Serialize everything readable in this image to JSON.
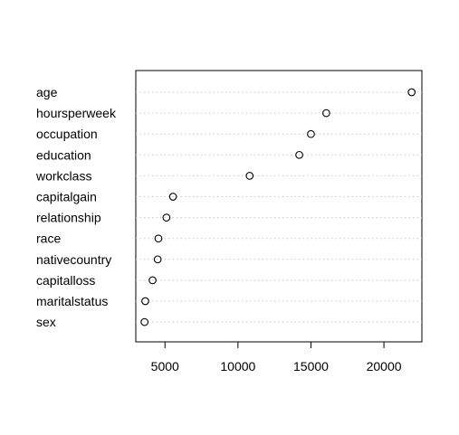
{
  "chart_data": {
    "type": "scatter",
    "title": "",
    "xlabel": "",
    "ylabel": "",
    "categories": [
      "age",
      "hoursperweek",
      "occupation",
      "education",
      "workclass",
      "capitalgain",
      "relationship",
      "race",
      "nativecountry",
      "capitalloss",
      "maritalstatus",
      "sex"
    ],
    "values": [
      21900,
      16050,
      15000,
      14200,
      10800,
      5550,
      5100,
      4550,
      4500,
      4150,
      3650,
      3600
    ],
    "xlim": [
      3000,
      22600
    ],
    "x_ticks": [
      5000,
      10000,
      15000,
      20000
    ],
    "x_tick_labels": [
      "5000",
      "10000",
      "15000",
      "20000"
    ],
    "grid": "dotted horizontal lines per category",
    "legend": "none",
    "colors": {
      "axis": "#000000",
      "point": "#000000",
      "gridline": "#c8c8c8",
      "background": "#ffffff"
    }
  }
}
